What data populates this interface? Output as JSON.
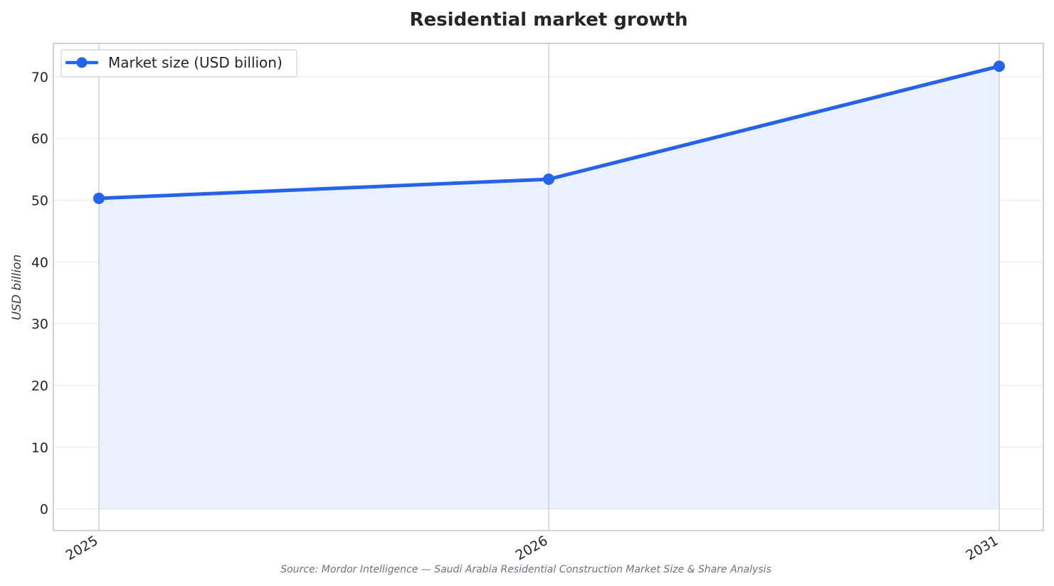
{
  "chart_data": {
    "type": "area",
    "title": "Residential market growth",
    "xlabel": "",
    "ylabel": "USD billion",
    "categories": [
      "2025",
      "2026",
      "2031"
    ],
    "series": [
      {
        "name": "Market size (USD billion)",
        "values": [
          50.3,
          53.4,
          71.7
        ]
      }
    ],
    "ylim": [
      -3.5,
      75.4
    ],
    "yticks": [
      0,
      10,
      20,
      30,
      40,
      50,
      60,
      70
    ],
    "grid": true,
    "legend_position": "top-left",
    "line_color": "#2563eb",
    "fill_color": "#eaf0fc",
    "source": "Source: Mordor Intelligence — Saudi Arabia Residential Construction Market Size & Share Analysis"
  }
}
